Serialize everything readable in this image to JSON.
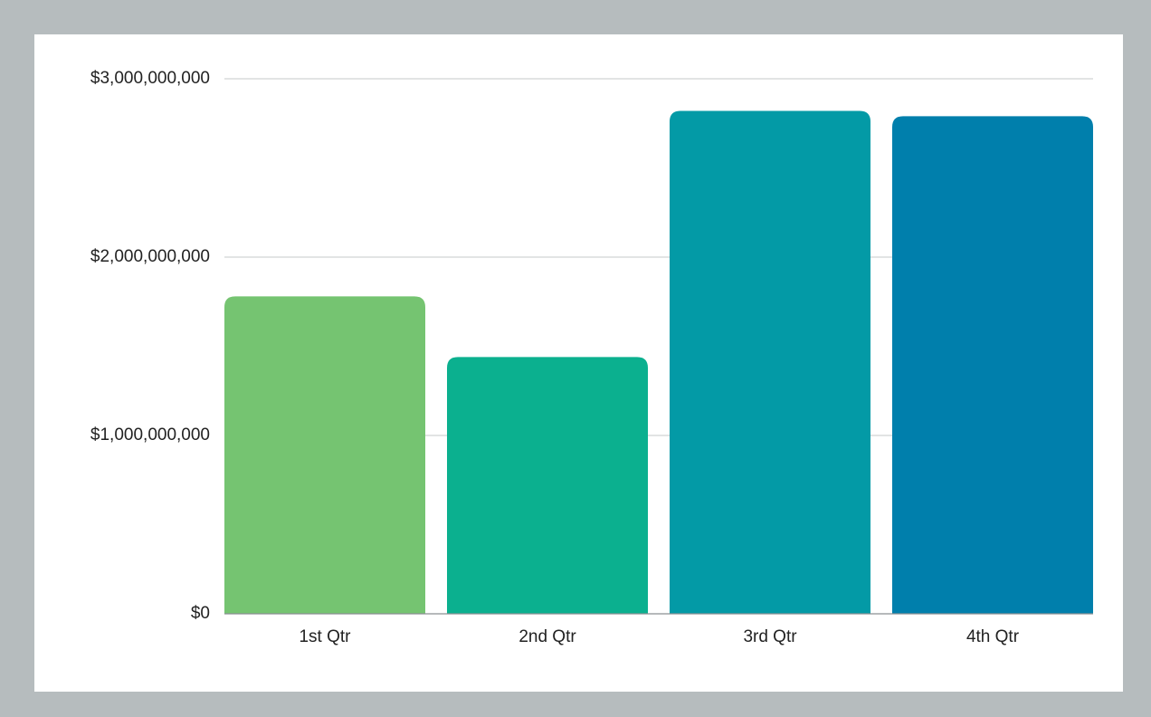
{
  "chart_data": {
    "type": "bar",
    "categories": [
      "1st Qtr",
      "2nd Qtr",
      "3rd Qtr",
      "4th Qtr"
    ],
    "values": [
      1780000000,
      1440000000,
      2820000000,
      2790000000
    ],
    "colors": [
      "#75c471",
      "#0bb08f",
      "#039aa6",
      "#007fac"
    ],
    "ylim": [
      0,
      3000000000
    ],
    "yticks": [
      {
        "value": 0,
        "label": "$0"
      },
      {
        "value": 1000000000,
        "label": "$1,000,000,000"
      },
      {
        "value": 2000000000,
        "label": "$2,000,000,000"
      },
      {
        "value": 3000000000,
        "label": "$3,000,000,000"
      }
    ],
    "grid": true
  }
}
